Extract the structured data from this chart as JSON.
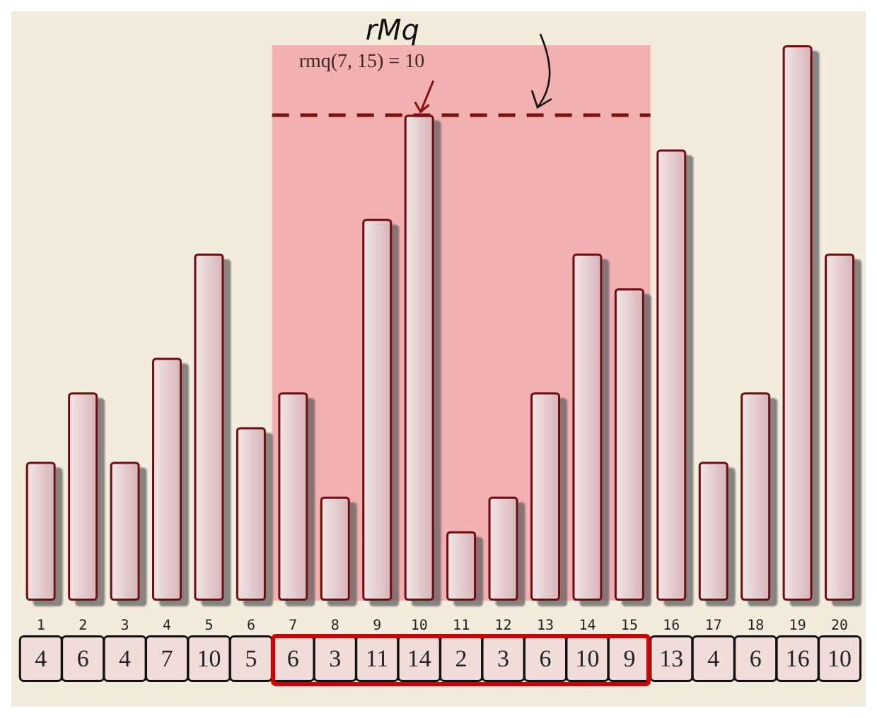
{
  "chart_data": {
    "type": "bar",
    "categories": [
      "1",
      "2",
      "3",
      "4",
      "5",
      "6",
      "7",
      "8",
      "9",
      "10",
      "11",
      "12",
      "13",
      "14",
      "15",
      "16",
      "17",
      "18",
      "19",
      "20"
    ],
    "values": [
      4,
      6,
      4,
      7,
      10,
      5,
      6,
      3,
      11,
      14,
      2,
      3,
      6,
      10,
      9,
      13,
      4,
      6,
      16,
      10
    ],
    "color": "#6e0c10",
    "data_labels": true,
    "grid": false,
    "bands": [
      {
        "axis": "x",
        "from": "7",
        "to": "15",
        "color": "#f2b0b0"
      }
    ],
    "ref_lines": [
      {
        "axis": "y",
        "value": 14,
        "color": "#7a1010",
        "line_style": "dashed"
      }
    ],
    "annotations": [
      "rMq",
      {
        "text": "rmq(7, 15) = 10",
        "x": "10",
        "y": 14
      }
    ]
  }
}
